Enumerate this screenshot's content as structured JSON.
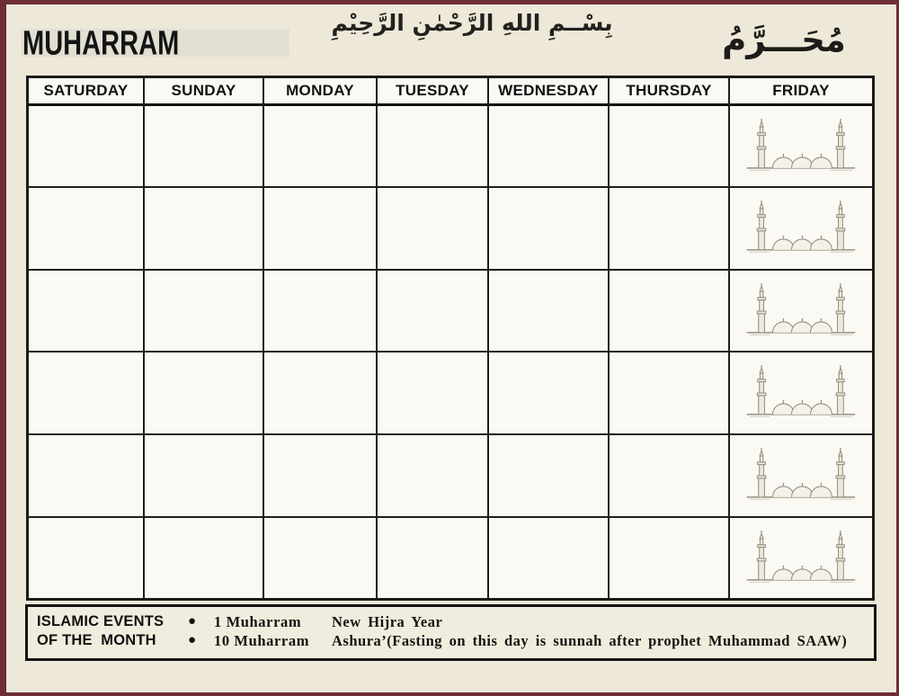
{
  "page": {
    "title": "MUHARRAM",
    "bismillah": "بِسْــمِ اللهِ الرَّحْمٰنِ الرَّحِيْمِ",
    "month_arabic": "مُحَـــرَّمُ"
  },
  "calendar": {
    "day_headers": [
      "SATURDAY",
      "SUNDAY",
      "MONDAY",
      "TUESDAY",
      "WEDNESDAY",
      "THURSDAY",
      "FRIDAY"
    ],
    "week_rows": 6,
    "friday_illustration": "mosque-icon",
    "cells_empty": true
  },
  "events": {
    "heading_line1": "ISLAMIC EVENTS",
    "heading_line2": "OF THE  MONTH",
    "bullet": "●",
    "items": [
      {
        "date": "1 Muharram",
        "description": "New Hijra Year"
      },
      {
        "date": "10 Muharram",
        "description": "Ashura’(Fasting on this day is sunnah after prophet Muhammad SAAW)"
      }
    ]
  },
  "colors": {
    "frame": "#6d2e35",
    "paper": "#ede8d8",
    "cell_background": "#faf9f4",
    "grid_line": "#1b1b1b",
    "events_background": "#f1edde",
    "drawing": "#96907e"
  }
}
